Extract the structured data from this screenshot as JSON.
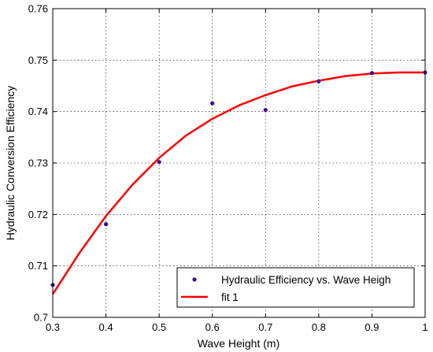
{
  "chart_data": {
    "type": "scatter",
    "title": "",
    "xlabel": "Wave Height (m)",
    "ylabel": "Hydraulic Conversion Efficiency",
    "xlim": [
      0.3,
      1.0
    ],
    "ylim": [
      0.7,
      0.76
    ],
    "xticks": [
      "0.3",
      "0.4",
      "0.5",
      "0.6",
      "0.7",
      "0.8",
      "0.9",
      "1"
    ],
    "yticks": [
      "0.7",
      "0.71",
      "0.72",
      "0.73",
      "0.74",
      "0.75",
      "0.76"
    ],
    "grid": true,
    "legend_position": "bottom-right",
    "series": [
      {
        "name": "Hydraulic Efficiency vs. Wave Heigh",
        "kind": "points",
        "color": "#3d0a9e",
        "x": [
          0.3,
          0.4,
          0.5,
          0.6,
          0.7,
          0.8,
          0.9,
          1.0
        ],
        "y": [
          0.7063,
          0.7181,
          0.7302,
          0.7416,
          0.7403,
          0.7459,
          0.7475,
          0.7476
        ]
      },
      {
        "name": "fit 1",
        "kind": "line",
        "color": "#ff0000",
        "x": [
          0.3,
          0.35,
          0.4,
          0.45,
          0.5,
          0.55,
          0.6,
          0.65,
          0.7,
          0.75,
          0.8,
          0.85,
          0.9,
          0.95,
          1.0
        ],
        "y": [
          0.7045,
          0.7125,
          0.7197,
          0.7258,
          0.731,
          0.7353,
          0.7386,
          0.7412,
          0.7432,
          0.7449,
          0.746,
          0.7469,
          0.7474,
          0.7476,
          0.7476
        ]
      }
    ]
  }
}
